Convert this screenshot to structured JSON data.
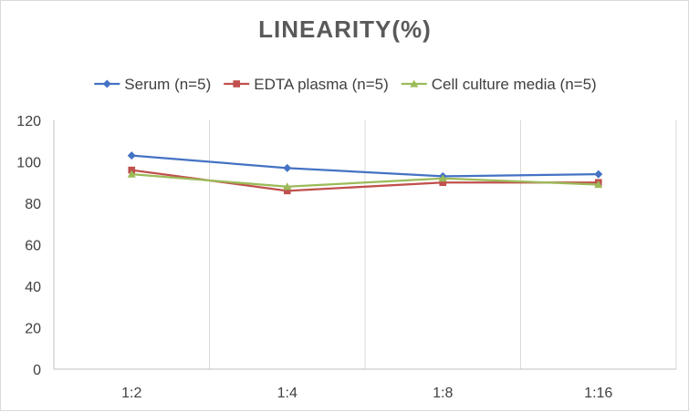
{
  "chart_data": {
    "type": "line",
    "title": "LINEARITY(%)",
    "xlabel": "",
    "ylabel": "",
    "categories": [
      "1:2",
      "1:4",
      "1:8",
      "1:16"
    ],
    "ylim": [
      0,
      120
    ],
    "yticks": [
      0,
      20,
      40,
      60,
      80,
      100,
      120
    ],
    "grid": "vertical",
    "legend_position": "top",
    "series": [
      {
        "name": "Serum (n=5)",
        "values": [
          103,
          97,
          93,
          94
        ],
        "color": "#4472c4",
        "marker": "diamond"
      },
      {
        "name": "EDTA plasma (n=5)",
        "values": [
          96,
          86,
          90,
          90
        ],
        "color": "#c0504d",
        "marker": "square"
      },
      {
        "name": "Cell culture media (n=5)",
        "values": [
          94,
          88,
          92,
          89
        ],
        "color": "#9bbb59",
        "marker": "triangle"
      }
    ]
  }
}
